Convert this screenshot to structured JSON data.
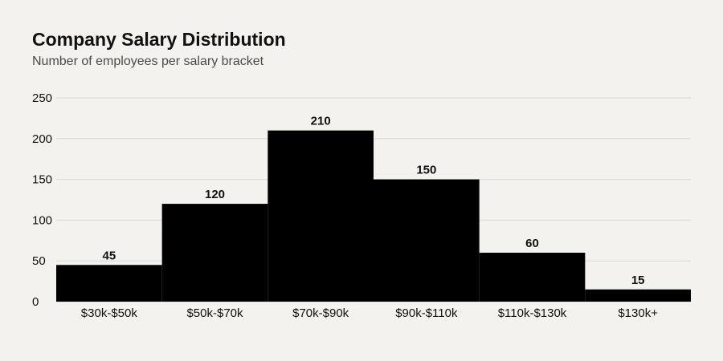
{
  "header": {
    "title": "Company Salary Distribution",
    "subtitle": "Number of employees per salary bracket"
  },
  "colors": {
    "background": "#f3f2ee",
    "bar": "#000000",
    "grid": "#d9d8d3",
    "text": "#111111",
    "subtitle": "#4a4a4a"
  },
  "chart_data": {
    "type": "bar",
    "title": "Company Salary Distribution",
    "subtitle": "Number of employees per salary bracket",
    "xlabel": "",
    "ylabel": "",
    "categories": [
      "$30k-$50k",
      "$50k-$70k",
      "$70k-$90k",
      "$90k-$110k",
      "$110k-$130k",
      "$130k+"
    ],
    "values": [
      45,
      120,
      210,
      150,
      60,
      15
    ],
    "ylim": [
      0,
      250
    ],
    "yticks": [
      0,
      50,
      100,
      150,
      200,
      250
    ],
    "grid": true,
    "data_labels": true,
    "legend": "none"
  }
}
